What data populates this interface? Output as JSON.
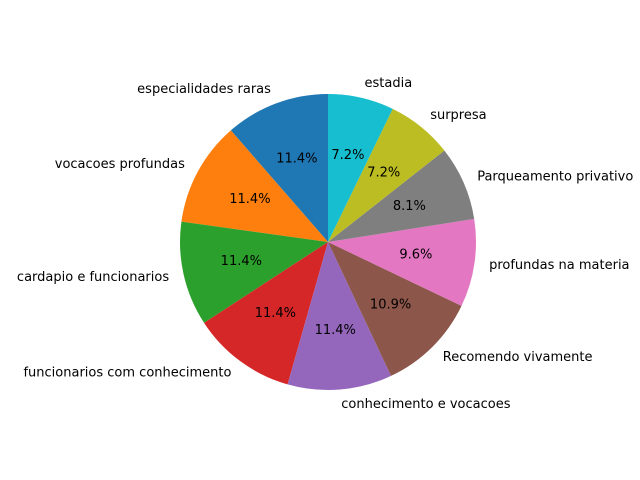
{
  "chart_data": {
    "type": "pie",
    "title": "",
    "start_angle_deg": 90,
    "direction": "counterclockwise",
    "slices": [
      {
        "label": "especialidades raras",
        "pct_label": "11.4%",
        "value": 11.4,
        "color": "#1f77b4"
      },
      {
        "label": "vocacoes profundas",
        "pct_label": "11.4%",
        "value": 11.4,
        "color": "#ff7f0e"
      },
      {
        "label": "cardapio e funcionarios",
        "pct_label": "11.4%",
        "value": 11.4,
        "color": "#2ca02c"
      },
      {
        "label": "funcionarios com conhecimento",
        "pct_label": "11.4%",
        "value": 11.4,
        "color": "#d62728"
      },
      {
        "label": "conhecimento e vocacoes",
        "pct_label": "11.4%",
        "value": 11.4,
        "color": "#9467bd"
      },
      {
        "label": "Recomendo vivamente",
        "pct_label": "10.9%",
        "value": 10.9,
        "color": "#8c564b"
      },
      {
        "label": "profundas na materia",
        "pct_label": "9.6%",
        "value": 9.6,
        "color": "#e377c2"
      },
      {
        "label": "Parqueamento privativo",
        "pct_label": "8.1%",
        "value": 8.1,
        "color": "#7f7f7f"
      },
      {
        "label": "surpresa",
        "pct_label": "7.2%",
        "value": 7.2,
        "color": "#bcbd22"
      },
      {
        "label": "estadia",
        "pct_label": "7.2%",
        "value": 7.2,
        "color": "#17becf"
      }
    ]
  }
}
